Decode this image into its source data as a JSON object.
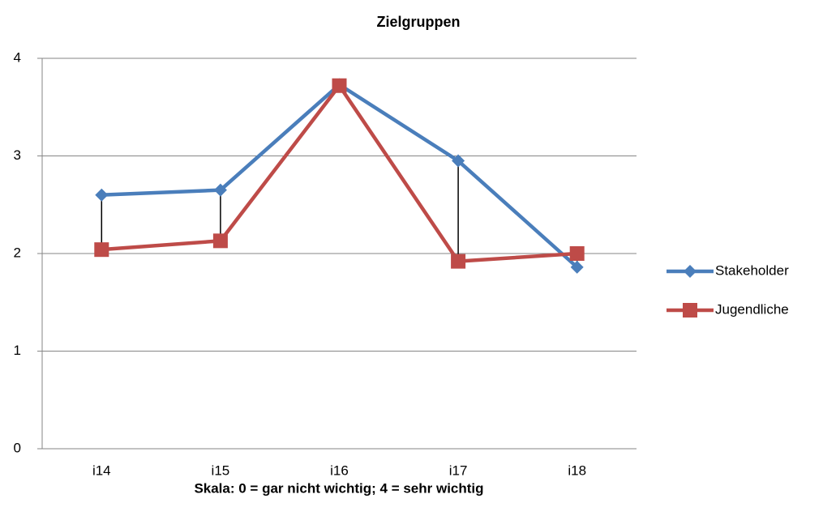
{
  "chart_data": {
    "type": "line",
    "title": "Zielgruppen",
    "x_axis_label": "Skala: 0 = gar nicht wichtig; 4 = sehr wichtig",
    "categories": [
      "i14",
      "i15",
      "i16",
      "i17",
      "i18"
    ],
    "series": [
      {
        "name": "Stakeholder",
        "color": "#4a7ebb",
        "marker": "diamond",
        "values": [
          2.6,
          2.65,
          3.73,
          2.95,
          1.86
        ]
      },
      {
        "name": "Jugendliche",
        "color": "#be4b48",
        "marker": "square",
        "values": [
          2.04,
          2.13,
          3.72,
          1.92,
          2.0
        ]
      }
    ],
    "ylim": [
      0,
      4
    ],
    "yticks": [
      0,
      1,
      2,
      3,
      4
    ],
    "grid": true,
    "high_low_lines": true,
    "legend": "right"
  }
}
